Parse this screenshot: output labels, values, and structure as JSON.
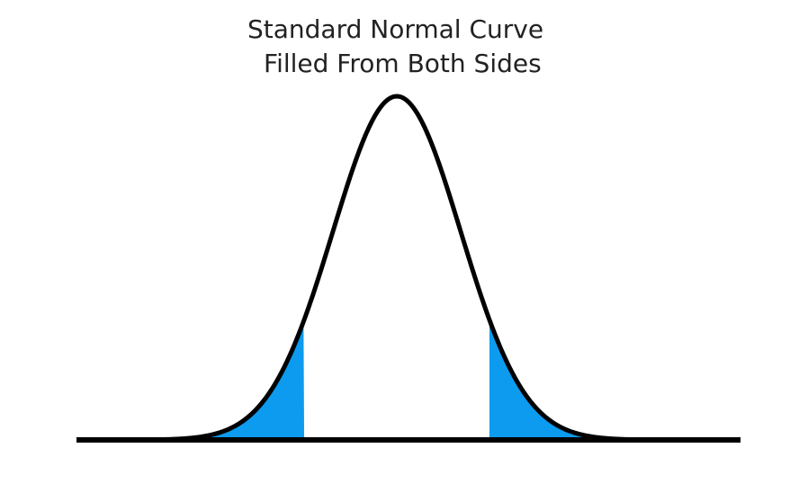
{
  "title": {
    "line1": "Standard Normal Curve",
    "line2": "Filled From Both Sides"
  },
  "curve": {
    "distribution": "standard normal",
    "z_range": [
      -4.2,
      4.2
    ],
    "fill_color": "#0d9bef",
    "line_color": "#000000",
    "shaded_regions": [
      {
        "name": "left-tail",
        "from_z": "-infinity",
        "to_z": -1.45
      },
      {
        "name": "right-tail",
        "from_z": 1.45,
        "to_z": "infinity"
      }
    ]
  }
}
